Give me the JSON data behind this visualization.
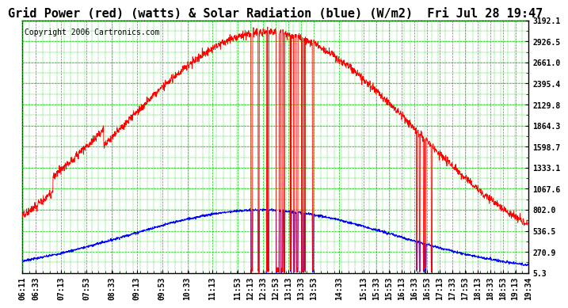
{
  "title": "Grid Power (red) (watts) & Solar Radiation (blue) (W/m2)  Fri Jul 28 19:47",
  "copyright": "Copyright 2006 Cartronics.com",
  "background_color": "#ffffff",
  "plot_bg_color": "#ffffff",
  "grid_color": "#00cc00",
  "ymin": 5.3,
  "ymax": 3192.1,
  "yticks": [
    5.3,
    270.9,
    536.5,
    802.0,
    1067.6,
    1333.1,
    1598.7,
    1864.3,
    2129.8,
    2395.4,
    2661.0,
    2926.5,
    3192.1
  ],
  "ytick_labels": [
    "5.3",
    "270.9",
    "536.5",
    "802.0",
    "1067.6",
    "1333.1",
    "1598.7",
    "1864.3",
    "2129.8",
    "2395.4",
    "2661.0",
    "2926.5",
    "3192.1"
  ],
  "xtick_labels": [
    "06:11",
    "06:33",
    "07:13",
    "07:53",
    "08:33",
    "09:13",
    "09:53",
    "10:33",
    "11:13",
    "11:53",
    "12:13",
    "12:33",
    "12:53",
    "13:13",
    "13:33",
    "13:53",
    "14:33",
    "15:13",
    "15:33",
    "15:53",
    "16:13",
    "16:33",
    "16:53",
    "17:13",
    "17:33",
    "17:53",
    "18:13",
    "18:33",
    "18:53",
    "19:13",
    "19:34"
  ],
  "red_line_color": "#ff0000",
  "blue_line_color": "#0000ff",
  "title_fontsize": 11,
  "tick_fontsize": 7,
  "copyright_fontsize": 7
}
